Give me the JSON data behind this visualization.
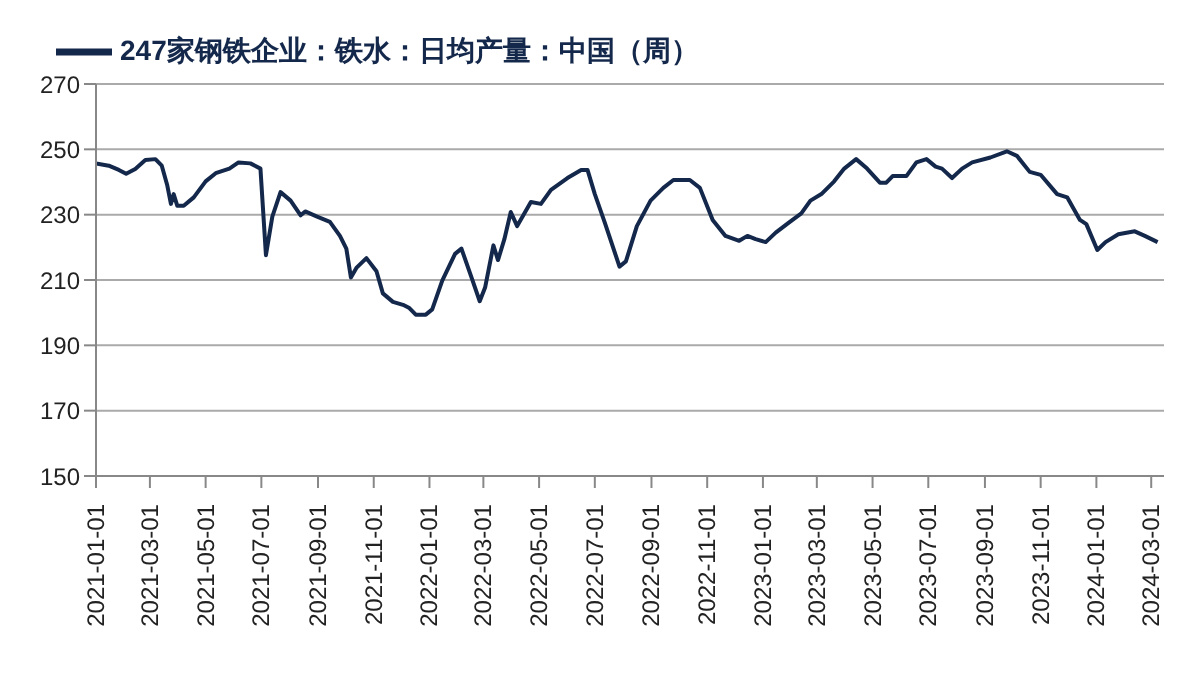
{
  "chart_data": {
    "type": "line",
    "x": [
      "2021-01-01",
      "2021-01-15",
      "2021-01-26",
      "2021-02-03",
      "2021-02-13",
      "2021-02-24",
      "2021-03-07",
      "2021-03-14",
      "2021-03-20",
      "2021-03-24",
      "2021-03-27",
      "2021-03-31",
      "2021-04-07",
      "2021-04-18",
      "2021-05-01",
      "2021-05-12",
      "2021-05-27",
      "2021-06-06",
      "2021-06-19",
      "2021-06-30",
      "2021-07-06",
      "2021-07-13",
      "2021-07-22",
      "2021-08-02",
      "2021-08-13",
      "2021-08-18",
      "2021-08-31",
      "2021-09-14",
      "2021-09-25",
      "2021-10-02",
      "2021-10-07",
      "2021-10-13",
      "2021-10-24",
      "2021-11-04",
      "2021-11-11",
      "2021-11-22",
      "2021-12-03",
      "2021-12-10",
      "2021-12-17",
      "2021-12-28",
      "2022-01-04",
      "2022-01-15",
      "2022-01-29",
      "2022-02-05",
      "2022-02-16",
      "2022-02-25",
      "2022-03-03",
      "2022-03-12",
      "2022-03-17",
      "2022-03-24",
      "2022-03-31",
      "2022-04-07",
      "2022-04-22",
      "2022-05-03",
      "2022-05-14",
      "2022-06-01",
      "2022-06-16",
      "2022-06-23",
      "2022-07-01",
      "2022-07-12",
      "2022-07-28",
      "2022-08-04",
      "2022-08-16",
      "2022-08-31",
      "2022-09-14",
      "2022-09-25",
      "2022-10-13",
      "2022-10-24",
      "2022-11-07",
      "2022-11-21",
      "2022-12-06",
      "2022-12-15",
      "2022-12-24",
      "2023-01-04",
      "2023-01-15",
      "2023-01-29",
      "2023-02-12",
      "2023-02-22",
      "2023-03-06",
      "2023-03-20",
      "2023-03-31",
      "2023-04-13",
      "2023-04-25",
      "2023-05-09",
      "2023-05-16",
      "2023-05-23",
      "2023-06-07",
      "2023-06-18",
      "2023-06-29",
      "2023-07-09",
      "2023-07-16",
      "2023-07-27",
      "2023-08-07",
      "2023-08-18",
      "2023-09-07",
      "2023-09-25",
      "2023-10-06",
      "2023-10-20",
      "2023-11-01",
      "2023-11-19",
      "2023-11-30",
      "2023-12-14",
      "2023-12-21",
      "2024-01-02",
      "2024-01-11",
      "2024-01-25",
      "2024-02-12",
      "2024-02-23",
      "2024-03-08"
    ],
    "series": [
      {
        "name": "247家钢铁企业：铁水：日均产量：中国（周）",
        "color": "#14284b",
        "values": [
          245.7,
          245,
          243.7,
          242.5,
          244,
          246.7,
          247,
          245,
          239,
          233.3,
          236.3,
          232.7,
          232.7,
          235.3,
          240.2,
          242.7,
          244.1,
          246,
          245.7,
          244.1,
          217.6,
          229.4,
          236.9,
          234.3,
          229.8,
          231,
          229.4,
          227.8,
          223.5,
          219.6,
          210.8,
          213.7,
          216.7,
          212.7,
          205.9,
          203.3,
          202.4,
          201.4,
          199.4,
          199.4,
          201,
          209.8,
          218,
          219.6,
          210.8,
          203.5,
          207.8,
          220.6,
          216.1,
          222.5,
          230.8,
          226.5,
          233.9,
          233.3,
          237.6,
          241.2,
          243.7,
          243.7,
          236.3,
          227.5,
          214.1,
          215.7,
          226.5,
          234.3,
          238.2,
          240.6,
          240.6,
          238.2,
          228.4,
          223.5,
          222,
          223.5,
          222.5,
          221.6,
          224.5,
          227.5,
          230.4,
          234.3,
          236.3,
          240.2,
          244.1,
          247,
          244.1,
          239.8,
          239.8,
          241.8,
          241.8,
          246,
          247,
          244.7,
          244.1,
          241.2,
          244.1,
          246,
          247.5,
          249.4,
          248,
          243.1,
          242.2,
          236.3,
          235.3,
          228.4,
          227.1,
          219.2,
          221.6,
          224,
          224.9,
          223.5,
          221.6
        ]
      }
    ],
    "xlim": [
      "2021-01-01",
      "2024-03-15"
    ],
    "xticks": [
      "2021-01-01",
      "2021-03-01",
      "2021-05-01",
      "2021-07-01",
      "2021-09-01",
      "2021-11-01",
      "2022-01-01",
      "2022-03-01",
      "2022-05-01",
      "2022-07-01",
      "2022-09-01",
      "2022-11-01",
      "2023-01-01",
      "2023-03-01",
      "2023-05-01",
      "2023-07-01",
      "2023-09-01",
      "2023-11-01",
      "2024-01-01",
      "2024-03-01"
    ],
    "ylim": [
      150,
      270
    ],
    "yticks": [
      150,
      170,
      190,
      210,
      230,
      250,
      270
    ],
    "grid": "y",
    "legend": "top left",
    "marker": "none",
    "line_style": "solid"
  }
}
